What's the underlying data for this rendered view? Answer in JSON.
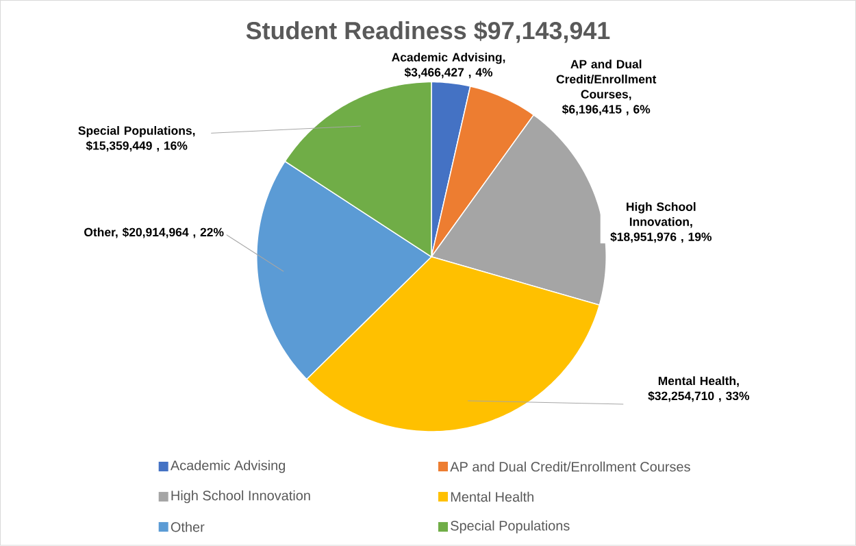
{
  "chart_data": {
    "type": "pie",
    "title": "Student Readiness $97,143,941",
    "categories": [
      "Academic Advising",
      "AP and Dual Credit/Enrollment Courses",
      "High School Innovation",
      "Mental Health",
      "Other",
      "Special Populations"
    ],
    "values": [
      3466427,
      6196415,
      18951976,
      32254710,
      20914964,
      15359449
    ],
    "colors": [
      "#4472c4",
      "#ed7d31",
      "#a5a5a5",
      "#ffc000",
      "#5b9bd5",
      "#70ad47"
    ],
    "value_labels": [
      "Academic Advising, $3,466,427 , 4%",
      "AP and Dual Credit/Enrollment Courses, $6,196,415 , 6%",
      "High School Innovation, $18,951,976 , 19%",
      "Mental Health, $32,254,710 , 33%",
      "Other, $20,914,964 , 22%",
      "Special Populations, $15,359,449 , 16%"
    ],
    "legend": "bottom"
  }
}
